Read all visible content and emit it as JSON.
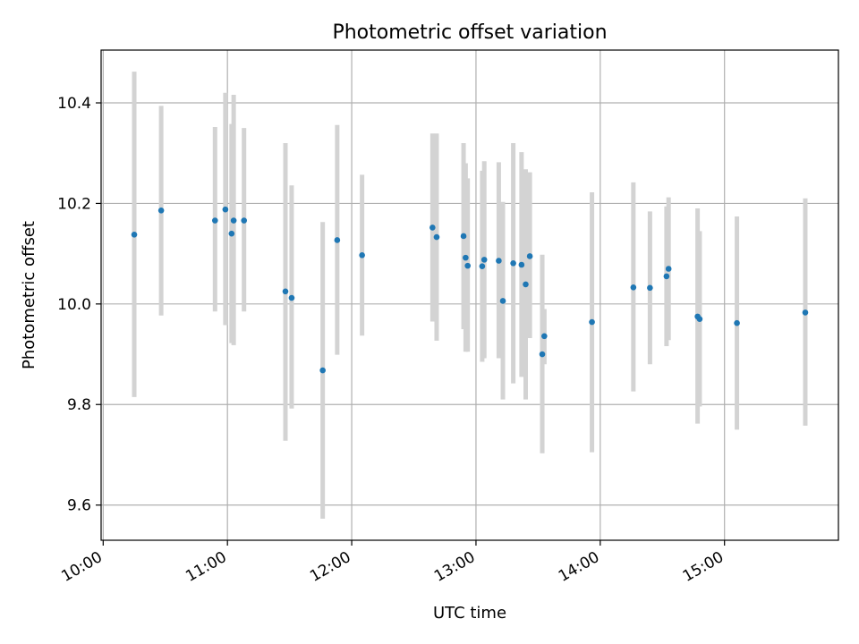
{
  "chart_data": {
    "type": "scatter",
    "title": "Photometric offset variation",
    "xlabel": "UTC time",
    "ylabel": "Photometric offset",
    "x_tick_labels": [
      "10:00",
      "11:00",
      "12:00",
      "13:00",
      "14:00",
      "15:00"
    ],
    "x_ticks": [
      "10:00",
      "11:00",
      "12:00",
      "13:00",
      "14:00",
      "15:00"
    ],
    "y_tick_labels": [
      "9.6",
      "9.8",
      "10.0",
      "10.2",
      "10.4"
    ],
    "y_ticks": [
      9.6,
      9.8,
      10.0,
      10.2,
      10.4
    ],
    "xlim": [
      "09:59",
      "15:55"
    ],
    "ylim": [
      9.53,
      10.505
    ],
    "grid": true,
    "marker_color": "#1f77b4",
    "errorbar_color": "#d3d3d3",
    "series": [
      {
        "points": [
          {
            "t": "10:15",
            "y": 10.138,
            "lo": 9.815,
            "hi": 10.462
          },
          {
            "t": "10:28",
            "y": 10.186,
            "lo": 9.977,
            "hi": 10.394
          },
          {
            "t": "10:54",
            "y": 10.166,
            "lo": 9.985,
            "hi": 10.352
          },
          {
            "t": "10:59",
            "y": 10.188,
            "lo": 9.958,
            "hi": 10.42
          },
          {
            "t": "11:02",
            "y": 10.14,
            "lo": 9.922,
            "hi": 10.358
          },
          {
            "t": "11:03",
            "y": 10.166,
            "lo": 9.918,
            "hi": 10.416
          },
          {
            "t": "11:08",
            "y": 10.166,
            "lo": 9.985,
            "hi": 10.35
          },
          {
            "t": "11:28",
            "y": 10.025,
            "lo": 9.728,
            "hi": 10.32
          },
          {
            "t": "11:31",
            "y": 10.012,
            "lo": 9.792,
            "hi": 10.236
          },
          {
            "t": "11:46",
            "y": 9.868,
            "lo": 9.573,
            "hi": 10.163
          },
          {
            "t": "11:53",
            "y": 10.127,
            "lo": 9.899,
            "hi": 10.356
          },
          {
            "t": "12:05",
            "y": 10.097,
            "lo": 9.937,
            "hi": 10.257
          },
          {
            "t": "12:39",
            "y": 10.152,
            "lo": 9.965,
            "hi": 10.339
          },
          {
            "t": "12:41",
            "y": 10.133,
            "lo": 9.927,
            "hi": 10.339
          },
          {
            "t": "12:54",
            "y": 10.135,
            "lo": 9.95,
            "hi": 10.32
          },
          {
            "t": "12:55",
            "y": 10.092,
            "lo": 9.905,
            "hi": 10.28
          },
          {
            "t": "12:56",
            "y": 10.076,
            "lo": 9.905,
            "hi": 10.25
          },
          {
            "t": "13:03",
            "y": 10.075,
            "lo": 9.885,
            "hi": 10.265
          },
          {
            "t": "13:04",
            "y": 10.088,
            "lo": 9.892,
            "hi": 10.284
          },
          {
            "t": "13:11",
            "y": 10.086,
            "lo": 9.892,
            "hi": 10.282
          },
          {
            "t": "13:13",
            "y": 10.006,
            "lo": 9.81,
            "hi": 10.203
          },
          {
            "t": "13:18",
            "y": 10.081,
            "lo": 9.842,
            "hi": 10.32
          },
          {
            "t": "13:22",
            "y": 10.078,
            "lo": 9.855,
            "hi": 10.302
          },
          {
            "t": "13:24",
            "y": 10.039,
            "lo": 9.81,
            "hi": 10.268
          },
          {
            "t": "13:26",
            "y": 10.095,
            "lo": 9.932,
            "hi": 10.262
          },
          {
            "t": "13:32",
            "y": 9.9,
            "lo": 9.703,
            "hi": 10.098
          },
          {
            "t": "13:33",
            "y": 9.936,
            "lo": 9.88,
            "hi": 9.99
          },
          {
            "t": "13:56",
            "y": 9.964,
            "lo": 9.705,
            "hi": 10.222
          },
          {
            "t": "14:16",
            "y": 10.033,
            "lo": 9.826,
            "hi": 10.242
          },
          {
            "t": "14:24",
            "y": 10.032,
            "lo": 9.88,
            "hi": 10.184
          },
          {
            "t": "14:32",
            "y": 10.055,
            "lo": 9.916,
            "hi": 10.194
          },
          {
            "t": "14:33",
            "y": 10.07,
            "lo": 9.928,
            "hi": 10.212
          },
          {
            "t": "14:47",
            "y": 9.975,
            "lo": 9.762,
            "hi": 10.19
          },
          {
            "t": "14:48",
            "y": 9.97,
            "lo": 9.796,
            "hi": 10.145
          },
          {
            "t": "15:06",
            "y": 9.962,
            "lo": 9.75,
            "hi": 10.174
          },
          {
            "t": "15:39",
            "y": 9.983,
            "lo": 9.758,
            "hi": 10.21
          }
        ]
      }
    ]
  }
}
